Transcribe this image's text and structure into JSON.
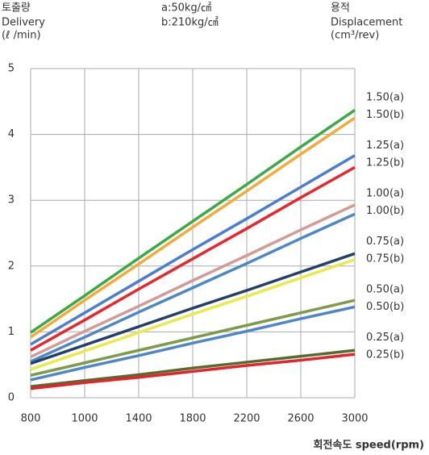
{
  "chart_data": {
    "type": "line",
    "y_label": [
      "토출량",
      "Delivery",
      "(ℓ /min)"
    ],
    "notes": [
      "a:50kg/㎠",
      "b:210kg/㎠"
    ],
    "right_label": [
      "용적",
      "Displacement",
      "(cm³/rev)"
    ],
    "x_label": "회전속도 speed(rpm)",
    "categories": [
      "800",
      "1000",
      "1400",
      "1800",
      "2200",
      "2600",
      "3000"
    ],
    "ylim": [
      0,
      5
    ],
    "yticks": [
      0,
      1,
      2,
      3,
      4,
      5
    ],
    "grid": true,
    "series": [
      {
        "name": "1.50(a)",
        "color": "#3aaa48",
        "values": [
          0.99,
          1.55,
          2.12,
          2.68,
          3.24,
          3.81,
          4.37
        ]
      },
      {
        "name": "1.50(b)",
        "color": "#f5a93a",
        "values": [
          0.92,
          1.48,
          2.03,
          2.59,
          3.14,
          3.7,
          4.25
        ]
      },
      {
        "name": "1.25(a)",
        "color": "#4a7fcf",
        "values": [
          0.81,
          1.29,
          1.77,
          2.25,
          2.72,
          3.2,
          3.68
        ]
      },
      {
        "name": "1.25(b)",
        "color": "#e8262b",
        "values": [
          0.72,
          1.18,
          1.65,
          2.11,
          2.57,
          3.04,
          3.5
        ]
      },
      {
        "name": "1.00(a)",
        "color": "#d39a96",
        "values": [
          0.62,
          1.01,
          1.39,
          1.78,
          2.16,
          2.55,
          2.93
        ]
      },
      {
        "name": "1.00(b)",
        "color": "#4d87c7",
        "values": [
          0.55,
          0.92,
          1.3,
          1.67,
          2.04,
          2.42,
          2.79
        ]
      },
      {
        "name": "0.75(a)",
        "color": "#233f6e",
        "values": [
          0.52,
          0.8,
          1.08,
          1.36,
          1.63,
          1.91,
          2.19
        ]
      },
      {
        "name": "0.75(b)",
        "color": "#e8ea4a",
        "values": [
          0.43,
          0.71,
          0.99,
          1.27,
          1.54,
          1.82,
          2.1
        ]
      },
      {
        "name": "0.50(a)",
        "color": "#7f9b4a",
        "values": [
          0.34,
          0.53,
          0.72,
          0.91,
          1.1,
          1.29,
          1.48
        ]
      },
      {
        "name": "0.50(b)",
        "color": "#4e87c9",
        "values": [
          0.27,
          0.46,
          0.64,
          0.83,
          1.01,
          1.2,
          1.38
        ]
      },
      {
        "name": "0.25(a)",
        "color": "#556b2f",
        "values": [
          0.17,
          0.26,
          0.35,
          0.45,
          0.54,
          0.63,
          0.72
        ]
      },
      {
        "name": "0.25(b)",
        "color": "#e3242b",
        "values": [
          0.14,
          0.23,
          0.31,
          0.4,
          0.49,
          0.57,
          0.66
        ]
      }
    ]
  }
}
